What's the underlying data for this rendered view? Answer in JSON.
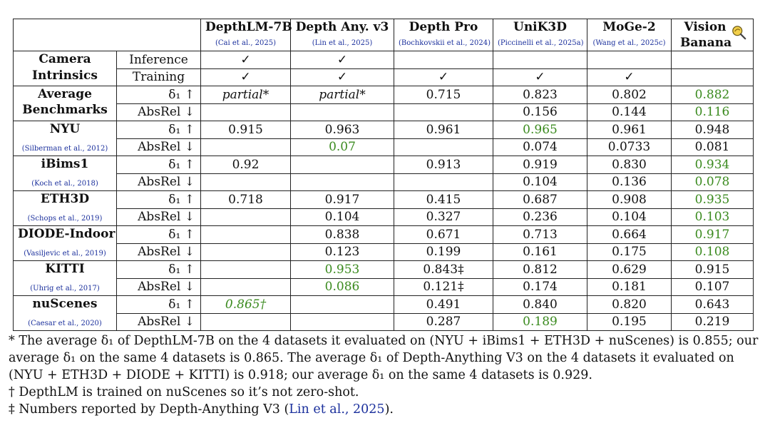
{
  "models": [
    {
      "name": "DepthLM-7B",
      "cite": "(Cai et al., 2025)"
    },
    {
      "name": "Depth Any. v3",
      "cite": "(Lin et al., 2025)"
    },
    {
      "name": "Depth Pro",
      "cite": "(Bochkovskii et al., 2024)"
    },
    {
      "name": "UniK3D",
      "cite": "(Piccinelli et al., 2025a)"
    },
    {
      "name": "MoGe-2",
      "cite": "(Wang et al., 2025c)"
    },
    {
      "name": "Vision Banana",
      "cite": ""
    }
  ],
  "camera": {
    "label_line1": "Camera",
    "label_line2": "Intrinsics",
    "rows": [
      {
        "label": "Inference",
        "cells": [
          "✓",
          "✓",
          "",
          "",
          "",
          ""
        ]
      },
      {
        "label": "Training",
        "cells": [
          "✓",
          "✓",
          "✓",
          "✓",
          "✓",
          ""
        ]
      }
    ]
  },
  "datasets": [
    {
      "name": "Average Benchmarks",
      "name_line1": "Average",
      "name_line2": "Benchmarks",
      "cite": "",
      "rows": [
        {
          "metric": "δ₁ ↑",
          "cells": [
            "partial*",
            "partial*",
            "0.715",
            "0.823",
            "0.802",
            "0.882"
          ],
          "styles": [
            "it",
            "it",
            "",
            "",
            "",
            "green"
          ]
        },
        {
          "metric": "AbsRel ↓",
          "cells": [
            "",
            "",
            "",
            "0.156",
            "0.144",
            "0.116"
          ],
          "styles": [
            "",
            "",
            "",
            "",
            "",
            "green"
          ]
        }
      ]
    },
    {
      "name": "NYU",
      "cite": "(Silberman et al., 2012)",
      "rows": [
        {
          "metric": "δ₁ ↑",
          "cells": [
            "0.915",
            "0.963",
            "0.961",
            "0.965",
            "0.961",
            "0.948"
          ],
          "styles": [
            "",
            "",
            "",
            "green",
            "",
            ""
          ]
        },
        {
          "metric": "AbsRel ↓",
          "cells": [
            "",
            "0.07",
            "",
            "0.074",
            "0.0733",
            "0.081"
          ],
          "styles": [
            "",
            "green",
            "",
            "",
            "",
            ""
          ]
        }
      ]
    },
    {
      "name": "iBims1",
      "cite": "(Koch et al., 2018)",
      "rows": [
        {
          "metric": "δ₁ ↑",
          "cells": [
            "0.92",
            "",
            "0.913",
            "0.919",
            "0.830",
            "0.934"
          ],
          "styles": [
            "",
            "",
            "",
            "",
            "",
            "green"
          ]
        },
        {
          "metric": "AbsRel ↓",
          "cells": [
            "",
            "",
            "",
            "0.104",
            "0.136",
            "0.078"
          ],
          "styles": [
            "",
            "",
            "",
            "",
            "",
            "green"
          ]
        }
      ]
    },
    {
      "name": "ETH3D",
      "cite": "(Schops et al., 2019)",
      "rows": [
        {
          "metric": "δ₁ ↑",
          "cells": [
            "0.718",
            "0.917",
            "0.415",
            "0.687",
            "0.908",
            "0.935"
          ],
          "styles": [
            "",
            "",
            "",
            "",
            "",
            "green"
          ]
        },
        {
          "metric": "AbsRel ↓",
          "cells": [
            "",
            "0.104",
            "0.327",
            "0.236",
            "0.104",
            "0.103"
          ],
          "styles": [
            "",
            "",
            "",
            "",
            "",
            "green"
          ]
        }
      ]
    },
    {
      "name": "DIODE-Indoor",
      "cite": "(Vasiljevic et al., 2019)",
      "rows": [
        {
          "metric": "δ₁ ↑",
          "cells": [
            "",
            "0.838",
            "0.671",
            "0.713",
            "0.664",
            "0.917"
          ],
          "styles": [
            "",
            "",
            "",
            "",
            "",
            "green"
          ]
        },
        {
          "metric": "AbsRel ↓",
          "cells": [
            "",
            "0.123",
            "0.199",
            "0.161",
            "0.175",
            "0.108"
          ],
          "styles": [
            "",
            "",
            "",
            "",
            "",
            "green"
          ]
        }
      ]
    },
    {
      "name": "KITTI",
      "cite": "(Uhrig et al., 2017)",
      "rows": [
        {
          "metric": "δ₁ ↑",
          "cells": [
            "",
            "0.953",
            "0.843‡",
            "0.812",
            "0.629",
            "0.915"
          ],
          "styles": [
            "",
            "green",
            "",
            "",
            "",
            ""
          ]
        },
        {
          "metric": "AbsRel ↓",
          "cells": [
            "",
            "0.086",
            "0.121‡",
            "0.174",
            "0.181",
            "0.107"
          ],
          "styles": [
            "",
            "green",
            "",
            "",
            "",
            ""
          ]
        }
      ]
    },
    {
      "name": "nuScenes",
      "cite": "(Caesar et al., 2020)",
      "rows": [
        {
          "metric": "δ₁ ↑",
          "cells": [
            "0.865†",
            "",
            "0.491",
            "0.840",
            "0.820",
            "0.643"
          ],
          "styles": [
            "green-it",
            "",
            "",
            "",
            "",
            ""
          ]
        },
        {
          "metric": "AbsRel ↓",
          "cells": [
            "",
            "",
            "0.287",
            "0.189",
            "0.195",
            "0.219"
          ],
          "styles": [
            "",
            "",
            "",
            "green",
            "",
            ""
          ]
        }
      ]
    }
  ],
  "footnotes": {
    "star": "* The average δ₁ of DepthLM-7B on the 4 datasets it evaluated on (NYU + iBims1 + ETH3D + nuScenes) is 0.855; our average δ₁ on the same 4 datasets is 0.865. The average δ₁ of Depth-Anything V3 on the 4 datasets it evaluated on (NYU + ETH3D + DIODE + KITTI) is 0.918; our average δ₁ on the same 4 datasets is 0.929.",
    "dagger": "† DepthLM is trained on nuScenes so it’s not zero-shot.",
    "ddagger_prefix": "‡ Numbers reported by Depth-Anything V3 (",
    "ddagger_link": "Lin et al., 2025",
    "ddagger_suffix": ")."
  },
  "colors": {
    "best": "#3a8a1e",
    "citation": "#1a2f9c"
  },
  "icons": {
    "vision_banana": "banana-magnifier-icon"
  }
}
